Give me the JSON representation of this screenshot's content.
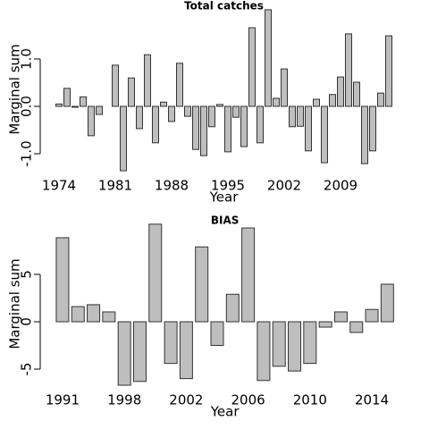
{
  "chart_data": [
    {
      "type": "bar",
      "title": "Total catches",
      "x_label": "Year",
      "y_label": "Marginal sum",
      "x": [
        1974,
        1975,
        1976,
        1977,
        1978,
        1979,
        1980,
        1981,
        1982,
        1983,
        1984,
        1985,
        1986,
        1987,
        1988,
        1989,
        1990,
        1991,
        1992,
        1993,
        1994,
        1995,
        1996,
        1997,
        1998,
        1999,
        2000,
        2001,
        2002,
        2003,
        2004,
        2005,
        2006,
        2007,
        2008,
        2009,
        2010,
        2011,
        2012,
        2013,
        2014,
        2015
      ],
      "values": [
        0.05,
        0.38,
        -0.02,
        0.2,
        -0.62,
        -0.17,
        0,
        0.87,
        -1.36,
        0.6,
        -0.47,
        1.09,
        -0.77,
        0.09,
        -0.32,
        0.91,
        -0.21,
        -0.91,
        -1.04,
        -0.43,
        0.04,
        -0.96,
        -0.23,
        -0.85,
        1.66,
        -0.77,
        2.04,
        0.17,
        0.79,
        -0.43,
        -0.42,
        -0.94,
        0.15,
        -1.19,
        0.25,
        0.62,
        1.53,
        0.51,
        -1.21,
        -0.94,
        0.28,
        1.49
      ],
      "color": "#bebebe",
      "xlim": [
        1973,
        2016
      ],
      "xticks": [
        1974,
        1981,
        1988,
        1995,
        2002,
        2009
      ],
      "ylim": [
        -1.5,
        2.1
      ],
      "yticks": [
        {
          "value": -1,
          "label": "-1.0"
        },
        {
          "value": 0,
          "label": "0.0"
        },
        {
          "value": 1,
          "label": "1.0"
        }
      ]
    },
    {
      "type": "bar",
      "title": "BIAS",
      "x_label": "Year",
      "y_label": "Marginal sum",
      "categories": [
        1991,
        null,
        null,
        null,
        1998,
        null,
        null,
        null,
        2002,
        null,
        null,
        null,
        2006,
        null,
        null,
        null,
        2010,
        null,
        null,
        null,
        2014,
        null
      ],
      "values": [
        8.87,
        1.6,
        1.8,
        1.04,
        -6.7,
        -6.3,
        10.3,
        -4.4,
        -6.0,
        7.9,
        -2.5,
        2.9,
        9.9,
        -6.2,
        -4.7,
        -5.2,
        -4.4,
        -0.57,
        1.04,
        -1.13,
        1.3,
        3.96
      ],
      "color": "#bebebe",
      "ylim": [
        -7.5,
        10.5
      ],
      "yticks": [
        -5,
        0,
        5
      ]
    }
  ]
}
